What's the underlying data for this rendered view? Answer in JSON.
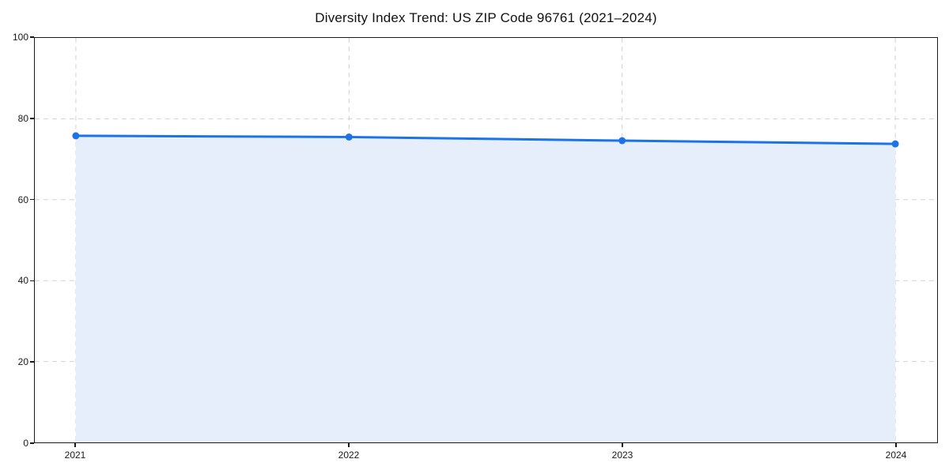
{
  "chart_data": {
    "type": "line",
    "title": "Diversity Index Trend: US ZIP Code 96761 (2021–2024)",
    "categories": [
      "2021",
      "2022",
      "2023",
      "2024"
    ],
    "series": [
      {
        "name": "Diversity Index",
        "values": [
          75.8,
          75.5,
          74.6,
          73.8
        ]
      }
    ],
    "xlabel": "",
    "ylabel": "",
    "ylim": [
      0,
      100
    ],
    "yticks": [
      0,
      20,
      40,
      60,
      80,
      100
    ],
    "grid": "dashed-both-axes",
    "legend": "none",
    "area_fill": true,
    "colors": {
      "line": "#1a73e8",
      "marker": "#1a73e8",
      "fill": "#e7eefb",
      "grid": "#d2d2d2",
      "spine": "#1a1a1a",
      "text": "#1a1a1a",
      "background": "#ffffff"
    }
  }
}
